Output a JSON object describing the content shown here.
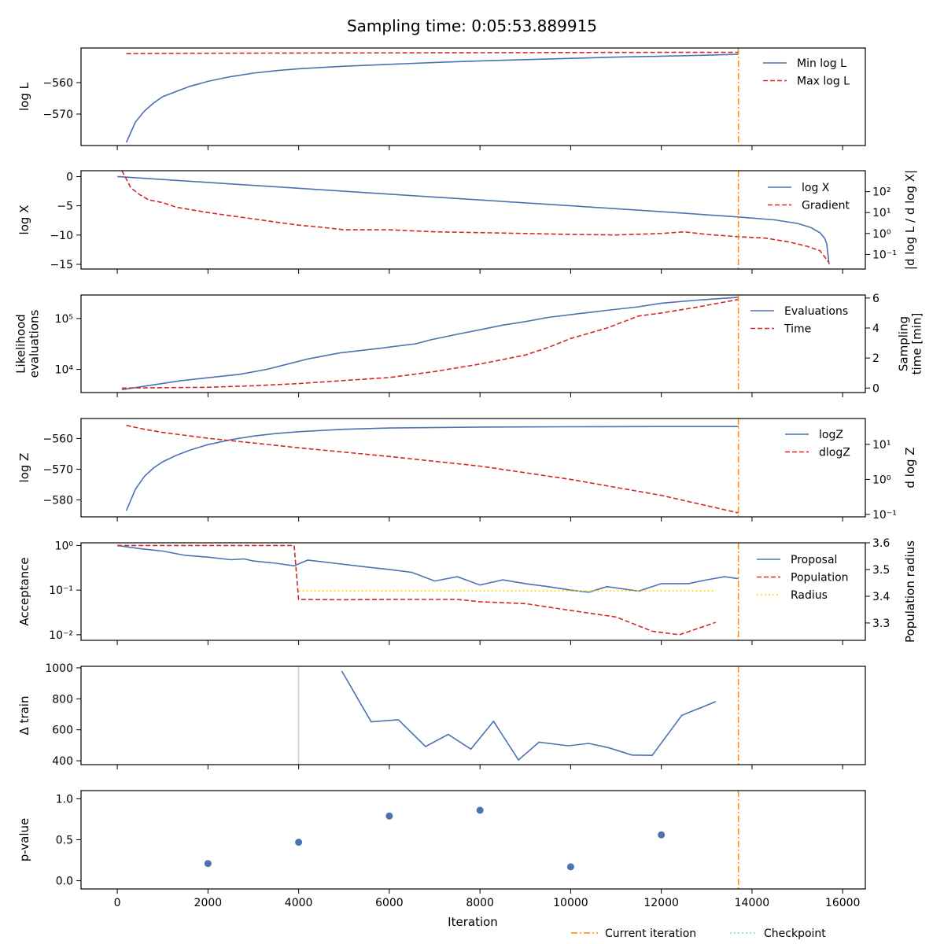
{
  "title": "Sampling time: 0:05:53.889915",
  "xlabel": "Iteration",
  "x_ticks": [
    0,
    2000,
    4000,
    6000,
    8000,
    10000,
    12000,
    14000,
    16000
  ],
  "x_range": [
    -800,
    16500
  ],
  "current_iteration": 13700,
  "bottom_legend": [
    "Current iteration",
    "Checkpoint"
  ],
  "colors": {
    "blue": "#4c72b0",
    "red": "#d62728",
    "orange": "#ff8c00",
    "yellow": "#ffd700",
    "gray": "#cccccc",
    "cyan": "#8ed0d6"
  },
  "chart_data": [
    {
      "type": "line",
      "ylabel": "log L",
      "ylim": [
        -580,
        -549
      ],
      "yticks": [
        -570,
        -560
      ],
      "legend_position": "top-right",
      "series": [
        {
          "name": "Min log L",
          "color": "#4c72b0",
          "dash": "solid",
          "x": [
            200,
            400,
            600,
            800,
            1000,
            1300,
            1600,
            2000,
            2500,
            3000,
            3500,
            4000,
            5000,
            6000,
            7000,
            8000,
            9000,
            10000,
            11000,
            12000,
            13000,
            13700
          ],
          "y": [
            -579,
            -572.5,
            -569,
            -566.5,
            -564.5,
            -562.8,
            -561.2,
            -559.6,
            -558.1,
            -557.0,
            -556.2,
            -555.6,
            -554.8,
            -554.2,
            -553.6,
            -553.1,
            -552.7,
            -552.3,
            -551.9,
            -551.6,
            -551.3,
            -551.0
          ]
        },
        {
          "name": "Max log L",
          "color": "#d62728",
          "dash": "dashed",
          "x": [
            200,
            1000,
            4000,
            8000,
            12000,
            13700
          ],
          "y": [
            -550.8,
            -550.7,
            -550.6,
            -550.5,
            -550.4,
            -550.4
          ]
        }
      ]
    },
    {
      "type": "line",
      "ylabel": "log X",
      "y2label": "|d log L / d log X|",
      "ylim": [
        -15.8,
        1
      ],
      "yticks": [
        0,
        -5,
        -10,
        -15
      ],
      "y2_scale": "log",
      "y2lim": [
        0.02,
        1000
      ],
      "y2ticks": [
        "10^2",
        "10^1",
        "10^0",
        "10^-1"
      ],
      "y2tick_values": [
        100,
        10,
        1,
        0.1
      ],
      "legend_position": "top-right",
      "series": [
        {
          "name": "log X",
          "color": "#4c72b0",
          "dash": "solid",
          "axis": "left",
          "x": [
            0,
            2000,
            4000,
            6000,
            8000,
            10000,
            12000,
            13700,
            14500,
            15000,
            15300,
            15500,
            15600,
            15650,
            15700
          ],
          "y": [
            0,
            -1,
            -2,
            -3,
            -4,
            -5,
            -6,
            -6.9,
            -7.4,
            -8.0,
            -8.7,
            -9.6,
            -10.5,
            -11.5,
            -15.0
          ]
        },
        {
          "name": "Gradient",
          "color": "#d62728",
          "dash": "dashed",
          "axis": "right",
          "x": [
            100,
            200,
            300,
            500,
            700,
            1000,
            1300,
            1600,
            2000,
            2500,
            3000,
            3500,
            4000,
            4500,
            5000,
            6000,
            7000,
            8000,
            9000,
            10000,
            11000,
            12000,
            12500,
            13000,
            13700,
            14300,
            14800,
            15200,
            15500,
            15700
          ],
          "y": [
            1000,
            400,
            150,
            70,
            40,
            30,
            18,
            14,
            10,
            7,
            5,
            3.5,
            2.5,
            2,
            1.5,
            1.5,
            1.2,
            1.1,
            1.0,
            0.9,
            0.85,
            1.0,
            1.2,
            0.9,
            0.7,
            0.6,
            0.4,
            0.25,
            0.15,
            0.04
          ]
        }
      ]
    },
    {
      "type": "line",
      "ylabel": "Likelihood evaluations",
      "y2label": "Sampling time [min]",
      "y_scale": "log",
      "ylim": [
        3500,
        290000
      ],
      "yticks": [
        "10^4",
        "10^5"
      ],
      "ytick_values": [
        10000,
        100000
      ],
      "y2lim": [
        -0.3,
        6.2
      ],
      "y2ticks": [
        0,
        2,
        4,
        6
      ],
      "legend_position": "top-right",
      "series": [
        {
          "name": "Evaluations",
          "color": "#4c72b0",
          "dash": "solid",
          "axis": "left",
          "x": [
            100,
            1400,
            2700,
            3300,
            3800,
            4200,
            4900,
            5800,
            6600,
            6900,
            7500,
            8000,
            8500,
            9000,
            9500,
            10200,
            10800,
            11500,
            12000,
            12800,
            13700
          ],
          "y": [
            4000,
            6000,
            8000,
            10000,
            13000,
            16000,
            21000,
            26000,
            32000,
            38000,
            49000,
            60000,
            74000,
            87000,
            105000,
            125000,
            145000,
            170000,
            200000,
            230000,
            262000
          ]
        },
        {
          "name": "Time",
          "color": "#d62728",
          "dash": "dashed",
          "axis": "right",
          "x": [
            100,
            2000,
            3000,
            4000,
            5000,
            6000,
            7000,
            8000,
            9000,
            9500,
            10000,
            10800,
            11500,
            12000,
            12800,
            13700
          ],
          "y": [
            0,
            0.05,
            0.15,
            0.3,
            0.5,
            0.7,
            1.1,
            1.6,
            2.2,
            2.7,
            3.3,
            4.0,
            4.8,
            5.0,
            5.4,
            5.9
          ]
        }
      ]
    },
    {
      "type": "line",
      "ylabel": "log Z",
      "y2label": "d log Z",
      "ylim": [
        -585.5,
        -553.5
      ],
      "yticks": [
        -580,
        -570,
        -560
      ],
      "y2_scale": "log",
      "y2lim": [
        0.085,
        55
      ],
      "y2ticks": [
        "10^1",
        "10^0",
        "10^-1"
      ],
      "y2tick_values": [
        10,
        1,
        0.1
      ],
      "legend_position": "top-right",
      "series": [
        {
          "name": "logZ",
          "color": "#4c72b0",
          "dash": "solid",
          "axis": "left",
          "x": [
            200,
            400,
            600,
            800,
            1000,
            1300,
            1600,
            2000,
            2500,
            3000,
            3500,
            4000,
            5000,
            6000,
            8000,
            10000,
            12000,
            13700
          ],
          "y": [
            -583.5,
            -576.5,
            -572.3,
            -569.6,
            -567.6,
            -565.5,
            -563.8,
            -562.0,
            -560.4,
            -559.2,
            -558.4,
            -557.8,
            -557.0,
            -556.6,
            -556.3,
            -556.2,
            -556.1,
            -556.1
          ]
        },
        {
          "name": "dlogZ",
          "color": "#d62728",
          "dash": "dashed",
          "axis": "right",
          "x": [
            200,
            600,
            1000,
            2000,
            3000,
            4000,
            6000,
            8000,
            10000,
            12000,
            13700
          ],
          "y": [
            35,
            27,
            22,
            15,
            11,
            8,
            4.5,
            2.4,
            1.0,
            0.35,
            0.11
          ]
        }
      ]
    },
    {
      "type": "line",
      "ylabel": "Acceptance",
      "y2label": "Population radius",
      "y_scale": "log",
      "ylim": [
        0.0075,
        1.15
      ],
      "yticks": [
        "10^-2",
        "10^-1",
        "10^0"
      ],
      "ytick_values": [
        0.01,
        0.1,
        1
      ],
      "y2lim": [
        3.235,
        3.6
      ],
      "y2ticks": [
        3.3,
        3.4,
        3.5,
        3.6
      ],
      "legend_position": "top-right",
      "series": [
        {
          "name": "Proposal",
          "color": "#4c72b0",
          "dash": "solid",
          "axis": "left",
          "x": [
            0,
            500,
            1000,
            1500,
            2000,
            2500,
            2800,
            3000,
            3500,
            3900,
            4200,
            4800,
            5500,
            6000,
            6500,
            7000,
            7500,
            8000,
            8500,
            9000,
            9500,
            10000,
            10400,
            10800,
            11500,
            12000,
            12600,
            13000,
            13400,
            13700
          ],
          "y": [
            1.0,
            0.85,
            0.75,
            0.6,
            0.55,
            0.48,
            0.5,
            0.45,
            0.4,
            0.35,
            0.47,
            0.4,
            0.33,
            0.29,
            0.25,
            0.16,
            0.2,
            0.13,
            0.17,
            0.14,
            0.12,
            0.1,
            0.09,
            0.12,
            0.095,
            0.14,
            0.14,
            0.17,
            0.2,
            0.18
          ]
        },
        {
          "name": "Population",
          "color": "#d62728",
          "dash": "dashed",
          "axis": "left",
          "x": [
            0,
            3900,
            4000,
            5000,
            6000,
            7000,
            7500,
            8000,
            9000,
            10000,
            11000,
            11800,
            12400,
            13200
          ],
          "y": [
            1.0,
            1.0,
            0.062,
            0.061,
            0.062,
            0.062,
            0.062,
            0.055,
            0.05,
            0.035,
            0.025,
            0.012,
            0.01,
            0.019
          ]
        },
        {
          "name": "Radius",
          "color": "#ffd700",
          "dash": "dotted",
          "axis": "right",
          "x": [
            4000,
            13200
          ],
          "y": [
            3.42,
            3.42
          ]
        }
      ]
    },
    {
      "type": "line",
      "ylabel": "Δ train",
      "ylim": [
        375,
        1010
      ],
      "yticks": [
        400,
        600,
        800,
        1000
      ],
      "vline_x": 4000,
      "series": [
        {
          "name": "",
          "color": "#4c72b0",
          "dash": "solid",
          "x": [
            4950,
            5600,
            6200,
            6800,
            7300,
            7800,
            8300,
            8850,
            9300,
            9950,
            10400,
            10850,
            11350,
            11800,
            12450,
            13200
          ],
          "y": [
            980,
            652,
            665,
            492,
            570,
            475,
            655,
            405,
            520,
            497,
            512,
            483,
            437,
            435,
            693,
            782
          ]
        }
      ]
    },
    {
      "type": "scatter",
      "ylabel": "p-value",
      "ylim": [
        -0.1,
        1.1
      ],
      "yticks": [
        0.0,
        0.5,
        1.0
      ],
      "ytick_labels": [
        "0.0",
        "0.5",
        "1.0"
      ],
      "series": [
        {
          "name": "",
          "color": "#4c72b0",
          "x": [
            2000,
            4000,
            6000,
            8000,
            10000,
            12000
          ],
          "y": [
            0.21,
            0.47,
            0.79,
            0.86,
            0.17,
            0.56
          ]
        }
      ]
    }
  ]
}
